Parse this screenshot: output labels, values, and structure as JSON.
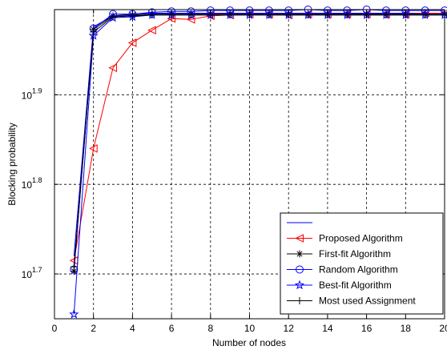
{
  "chart_data": {
    "type": "line",
    "title": "",
    "xlabel": "Number of nodes",
    "ylabel": "Blocking probability",
    "xlim": [
      0,
      20
    ],
    "ylim": [
      1.65,
      1.995
    ],
    "y_scale": "log",
    "grid": true,
    "x_ticks": [
      "0",
      "2",
      "4",
      "6",
      "8",
      "10",
      "12",
      "14",
      "16",
      "18",
      "20"
    ],
    "y_ticks": [
      {
        "value": 1.7,
        "base": "10",
        "exponent": "1.7"
      },
      {
        "value": 1.8,
        "base": "10",
        "exponent": "1.8"
      },
      {
        "value": 1.9,
        "base": "10",
        "exponent": "1.9"
      }
    ],
    "legend_position": "bottom-right",
    "x": [
      1,
      2,
      3,
      4,
      5,
      6,
      7,
      8,
      9,
      10,
      11,
      12,
      13,
      14,
      15,
      16,
      17,
      18,
      19,
      20
    ],
    "series": [
      {
        "name": "",
        "color": "#0000ff",
        "marker": "none",
        "values": [
          1.72,
          1.976,
          1.988,
          1.99,
          1.991,
          1.991,
          1.991,
          1.991,
          1.991,
          1.991,
          1.991,
          1.991,
          1.991,
          1.991,
          1.991,
          1.991,
          1.991,
          1.991,
          1.991,
          1.991
        ]
      },
      {
        "name": "Proposed Algorithm",
        "color": "#ff0000",
        "marker": "triangle-left",
        "values": [
          1.715,
          1.84,
          1.93,
          1.958,
          1.972,
          1.985,
          1.984,
          1.988,
          1.989,
          1.99,
          1.99,
          1.989,
          1.99,
          1.99,
          1.99,
          1.99,
          1.99,
          1.99,
          1.991,
          1.991
        ]
      },
      {
        "name": "First-fit Algorithm",
        "color": "#000000",
        "marker": "asterisk",
        "values": [
          1.703,
          1.973,
          1.988,
          1.989,
          1.99,
          1.99,
          1.99,
          1.99,
          1.99,
          1.99,
          1.99,
          1.99,
          1.99,
          1.99,
          1.99,
          1.99,
          1.99,
          1.99,
          1.99,
          1.99
        ]
      },
      {
        "name": "Random Algorithm",
        "color": "#0000ff",
        "marker": "circle",
        "values": [
          1.705,
          1.974,
          1.99,
          1.99,
          1.992,
          1.993,
          1.993,
          1.994,
          1.994,
          1.994,
          1.994,
          1.994,
          1.995,
          1.994,
          1.994,
          1.995,
          1.994,
          1.994,
          1.994,
          1.994
        ]
      },
      {
        "name": "Best-fit Algorithm",
        "color": "#0000ff",
        "marker": "star",
        "values": [
          1.655,
          1.966,
          1.986,
          1.987,
          1.989,
          1.989,
          1.989,
          1.989,
          1.989,
          1.989,
          1.989,
          1.989,
          1.989,
          1.989,
          1.989,
          1.989,
          1.989,
          1.989,
          1.989,
          1.989
        ]
      },
      {
        "name": "Most used Assignment",
        "color": "#000000",
        "marker": "plus",
        "values": [
          1.708,
          1.97,
          1.987,
          1.988,
          1.989,
          1.989,
          1.989,
          1.989,
          1.989,
          1.989,
          1.989,
          1.989,
          1.989,
          1.989,
          1.989,
          1.989,
          1.989,
          1.989,
          1.989,
          1.989
        ]
      }
    ]
  }
}
